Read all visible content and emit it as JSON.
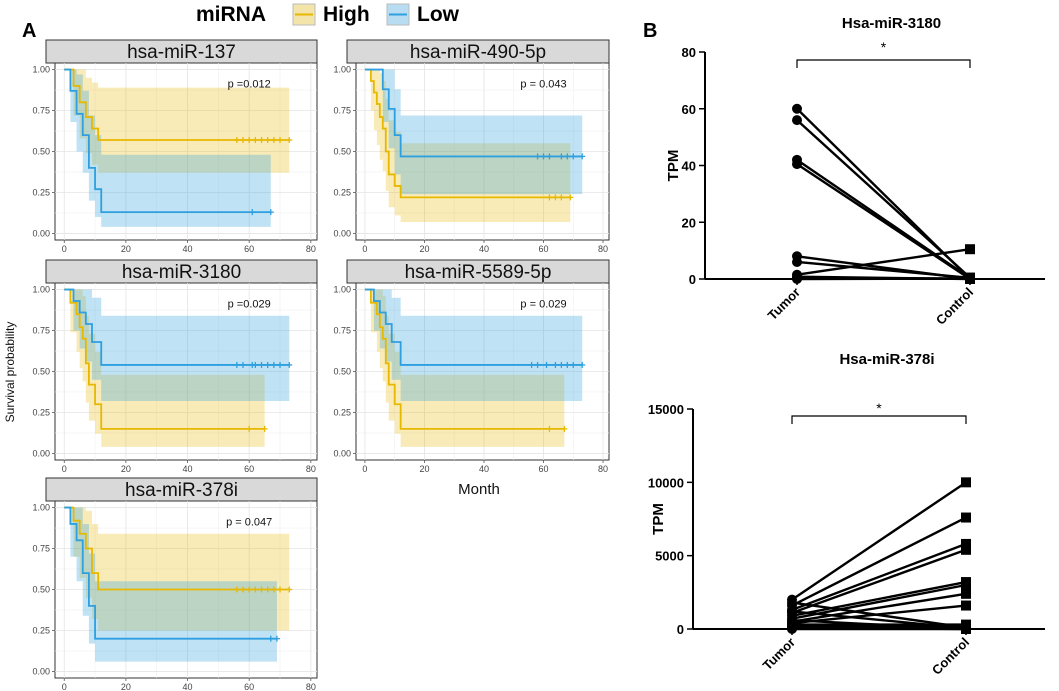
{
  "panel_labels": {
    "a": "A",
    "b": "B"
  },
  "legend": {
    "title": "miRNA",
    "items": [
      {
        "name": "High",
        "color": "#E7B800"
      },
      {
        "name": "Low",
        "color": "#2E9FDF"
      }
    ]
  },
  "km_axes": {
    "ylabel": "Survival probability",
    "xlabel": "Month",
    "xticks": [
      "0",
      "20",
      "40",
      "60",
      "80"
    ],
    "yticks": [
      "0.00",
      "0.25",
      "0.50",
      "0.75",
      "1.00"
    ]
  },
  "chart_data": [
    {
      "type": "line",
      "title": "hsa-miR-137",
      "pvalue": "p =0.012",
      "xlim": [
        -3,
        82
      ],
      "ylim": [
        -0.04,
        1.04
      ],
      "series": [
        {
          "name": "High",
          "color": "#E7B800",
          "x": [
            0,
            3,
            5,
            7,
            9,
            11,
            73
          ],
          "y": [
            1.0,
            0.9,
            0.8,
            0.71,
            0.64,
            0.57,
            0.57
          ],
          "ci_low": [
            1.0,
            0.72,
            0.58,
            0.49,
            0.42,
            0.37,
            0.37
          ],
          "ci_high": [
            1.0,
            1.0,
            1.0,
            0.95,
            0.92,
            0.89,
            0.89
          ],
          "censor": [
            56,
            58,
            60,
            62,
            64,
            66,
            68,
            70,
            73
          ]
        },
        {
          "name": "Low",
          "color": "#2E9FDF",
          "x": [
            0,
            2,
            4,
            6,
            8,
            10,
            12,
            67
          ],
          "y": [
            1.0,
            0.87,
            0.73,
            0.6,
            0.4,
            0.27,
            0.13,
            0.13
          ],
          "ci_low": [
            1.0,
            0.68,
            0.5,
            0.37,
            0.2,
            0.1,
            0.04,
            0.04
          ],
          "ci_high": [
            1.0,
            1.0,
            0.97,
            0.87,
            0.72,
            0.6,
            0.48,
            0.48
          ],
          "censor": [
            61,
            67
          ]
        }
      ]
    },
    {
      "type": "line",
      "title": "hsa-miR-490-5p",
      "pvalue": "p = 0.043",
      "xlim": [
        -3,
        82
      ],
      "ylim": [
        -0.04,
        1.04
      ],
      "series": [
        {
          "name": "High",
          "color": "#E7B800",
          "x": [
            0,
            2,
            3,
            4,
            5,
            6,
            7,
            8,
            10,
            12,
            69
          ],
          "y": [
            1.0,
            0.93,
            0.86,
            0.79,
            0.71,
            0.64,
            0.5,
            0.36,
            0.29,
            0.22,
            0.22
          ],
          "ci_low": [
            1.0,
            0.75,
            0.63,
            0.54,
            0.45,
            0.38,
            0.26,
            0.16,
            0.11,
            0.07,
            0.07
          ],
          "ci_high": [
            1.0,
            1.0,
            1.0,
            1.0,
            0.98,
            0.93,
            0.82,
            0.69,
            0.62,
            0.55,
            0.55
          ],
          "censor": [
            62,
            64,
            66,
            69
          ]
        },
        {
          "name": "Low",
          "color": "#2E9FDF",
          "x": [
            0,
            6,
            8,
            10,
            12,
            73
          ],
          "y": [
            1.0,
            0.88,
            0.76,
            0.6,
            0.47,
            0.47
          ],
          "ci_low": [
            1.0,
            0.68,
            0.52,
            0.36,
            0.24,
            0.24
          ],
          "ci_high": [
            1.0,
            1.0,
            1.0,
            0.88,
            0.72,
            0.72
          ],
          "censor": [
            58,
            60,
            62,
            66,
            68,
            70,
            73
          ]
        }
      ]
    },
    {
      "type": "line",
      "title": "hsa-miR-3180",
      "pvalue": "p =0.029",
      "xlim": [
        -3,
        82
      ],
      "ylim": [
        -0.04,
        1.04
      ],
      "series": [
        {
          "name": "High",
          "color": "#E7B800",
          "x": [
            0,
            2,
            4,
            5,
            6,
            7,
            8,
            10,
            12,
            65
          ],
          "y": [
            1.0,
            0.92,
            0.85,
            0.77,
            0.7,
            0.55,
            0.42,
            0.3,
            0.15,
            0.15
          ],
          "ci_low": [
            1.0,
            0.74,
            0.62,
            0.52,
            0.44,
            0.31,
            0.2,
            0.12,
            0.04,
            0.04
          ],
          "ci_high": [
            1.0,
            1.0,
            1.0,
            1.0,
            0.96,
            0.84,
            0.73,
            0.62,
            0.48,
            0.48
          ],
          "censor": [
            60,
            65
          ]
        },
        {
          "name": "Low",
          "color": "#2E9FDF",
          "x": [
            0,
            3,
            5,
            7,
            9,
            12,
            73
          ],
          "y": [
            1.0,
            0.93,
            0.86,
            0.79,
            0.68,
            0.54,
            0.54
          ],
          "ci_low": [
            1.0,
            0.75,
            0.64,
            0.56,
            0.45,
            0.32,
            0.32
          ],
          "ci_high": [
            1.0,
            1.0,
            1.0,
            1.0,
            0.95,
            0.84,
            0.84
          ],
          "censor": [
            56,
            58,
            61,
            62,
            64,
            66,
            68,
            70,
            73
          ]
        }
      ]
    },
    {
      "type": "line",
      "title": "hsa-miR-5589-5p",
      "pvalue": "p = 0.029",
      "xlim": [
        -3,
        82
      ],
      "ylim": [
        -0.04,
        1.04
      ],
      "series": [
        {
          "name": "High",
          "color": "#E7B800",
          "x": [
            0,
            2,
            4,
            5,
            6,
            7,
            8,
            10,
            12,
            67
          ],
          "y": [
            1.0,
            0.92,
            0.85,
            0.77,
            0.7,
            0.55,
            0.42,
            0.3,
            0.15,
            0.15
          ],
          "ci_low": [
            1.0,
            0.74,
            0.62,
            0.52,
            0.44,
            0.31,
            0.2,
            0.12,
            0.04,
            0.04
          ],
          "ci_high": [
            1.0,
            1.0,
            1.0,
            1.0,
            0.96,
            0.84,
            0.73,
            0.62,
            0.48,
            0.48
          ],
          "censor": [
            62,
            67
          ]
        },
        {
          "name": "Low",
          "color": "#2E9FDF",
          "x": [
            0,
            3,
            5,
            7,
            9,
            12,
            73
          ],
          "y": [
            1.0,
            0.93,
            0.86,
            0.79,
            0.68,
            0.54,
            0.54
          ],
          "ci_low": [
            1.0,
            0.75,
            0.64,
            0.56,
            0.45,
            0.32,
            0.32
          ],
          "ci_high": [
            1.0,
            1.0,
            1.0,
            1.0,
            0.95,
            0.84,
            0.84
          ],
          "censor": [
            56,
            58,
            61,
            64,
            66,
            68,
            70,
            73
          ]
        }
      ]
    },
    {
      "type": "line",
      "title": "hsa-miR-378i",
      "pvalue": "p = 0.047",
      "xlim": [
        -3,
        82
      ],
      "ylim": [
        -0.04,
        1.04
      ],
      "series": [
        {
          "name": "High",
          "color": "#E7B800",
          "x": [
            0,
            3,
            5,
            7,
            9,
            11,
            73
          ],
          "y": [
            1.0,
            0.92,
            0.84,
            0.75,
            0.6,
            0.5,
            0.5
          ],
          "ci_low": [
            1.0,
            0.7,
            0.57,
            0.45,
            0.32,
            0.25,
            0.25
          ],
          "ci_high": [
            1.0,
            1.0,
            1.0,
            0.98,
            0.9,
            0.84,
            0.84
          ],
          "censor": [
            56,
            58,
            60,
            62,
            64,
            66,
            68,
            70,
            73
          ]
        },
        {
          "name": "Low",
          "color": "#2E9FDF",
          "x": [
            0,
            2,
            4,
            6,
            8,
            10,
            69
          ],
          "y": [
            1.0,
            0.9,
            0.8,
            0.6,
            0.4,
            0.2,
            0.2
          ],
          "ci_low": [
            1.0,
            0.7,
            0.55,
            0.34,
            0.17,
            0.06,
            0.06
          ],
          "ci_high": [
            1.0,
            1.0,
            1.0,
            0.9,
            0.72,
            0.55,
            0.55
          ],
          "censor": [
            67,
            69
          ]
        }
      ]
    },
    {
      "type": "scatter",
      "title": "Hsa-miR-3180",
      "ylabel": "TPM",
      "categories": [
        "Tumor",
        "Control"
      ],
      "ylim": [
        0,
        80
      ],
      "yticks": [
        "0",
        "20",
        "40",
        "60",
        "80"
      ],
      "significance": "*",
      "pairs": [
        [
          60,
          0
        ],
        [
          56,
          0.5
        ],
        [
          42,
          0.3
        ],
        [
          40.5,
          0
        ],
        [
          8,
          0
        ],
        [
          6,
          0.4
        ],
        [
          1.5,
          10.5
        ],
        [
          0.8,
          0
        ],
        [
          0.3,
          0.2
        ],
        [
          0,
          0.1
        ]
      ]
    },
    {
      "type": "scatter",
      "title": "Hsa-miR-378i",
      "ylabel": "TPM",
      "categories": [
        "Tumor",
        "Control"
      ],
      "ylim": [
        0,
        15000
      ],
      "yticks": [
        "0",
        "5000",
        "10000",
        "15000"
      ],
      "significance": "*",
      "pairs": [
        [
          2000,
          10000
        ],
        [
          1600,
          7600
        ],
        [
          1300,
          5800
        ],
        [
          1100,
          5400
        ],
        [
          900,
          3200
        ],
        [
          700,
          3000
        ],
        [
          500,
          2400
        ],
        [
          400,
          1600
        ],
        [
          300,
          300
        ],
        [
          200,
          150
        ],
        [
          1800,
          100
        ],
        [
          1200,
          50
        ],
        [
          100,
          0
        ],
        [
          600,
          0
        ],
        [
          0,
          0
        ]
      ]
    }
  ]
}
